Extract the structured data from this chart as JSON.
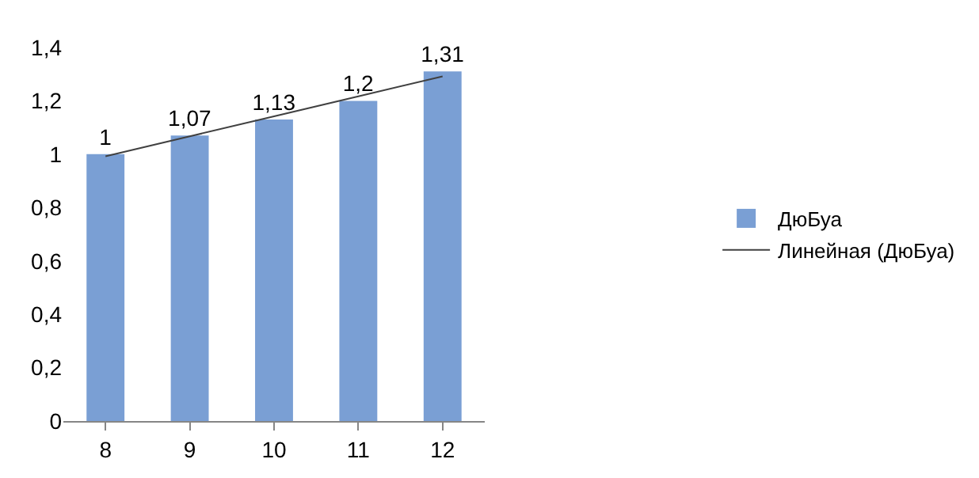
{
  "chart_data": {
    "type": "bar",
    "categories": [
      "8",
      "9",
      "10",
      "11",
      "12"
    ],
    "series": [
      {
        "name": "ДюБуа",
        "color": "#7a9fd4",
        "values": [
          1,
          1.07,
          1.13,
          1.2,
          1.31
        ],
        "value_labels": [
          "1",
          "1,07",
          "1,13",
          "1,2",
          "1,31"
        ]
      },
      {
        "name": "Линейная (ДюБуа)",
        "type": "line",
        "color": "#404040",
        "values": [
          0.992,
          1.067,
          1.142,
          1.217,
          1.292
        ]
      }
    ],
    "ylim": [
      0,
      1.4
    ],
    "yticks": [
      0,
      {
        "value": 0.2,
        "label": "0,2"
      },
      {
        "value": 0.4,
        "label": "0,4"
      },
      {
        "value": 0.6,
        "label": "0,6"
      },
      {
        "value": 0.8,
        "label": "0,8"
      },
      1,
      {
        "value": 1.2,
        "label": "1,2"
      },
      {
        "value": 1.4,
        "label": "1,4"
      }
    ],
    "grid": false,
    "legend": "right",
    "marker": "none"
  }
}
